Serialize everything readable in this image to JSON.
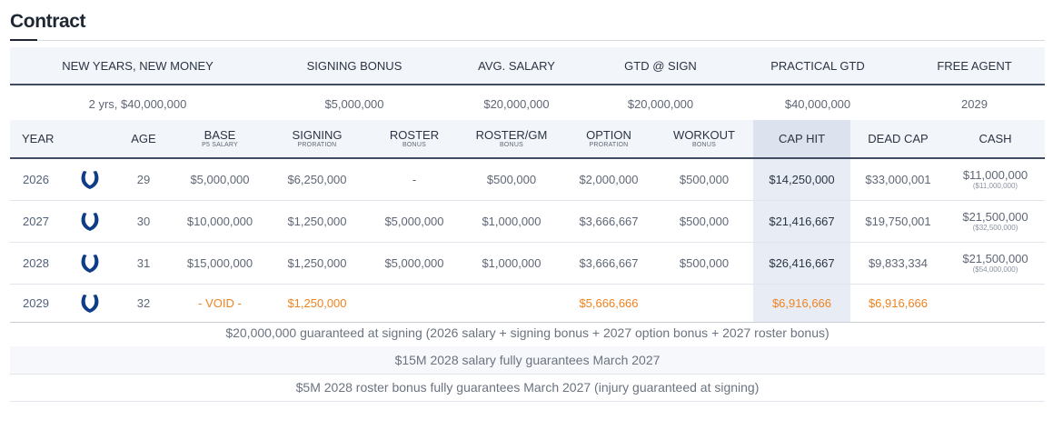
{
  "section_title": "Contract",
  "summary": {
    "headers": [
      "NEW YEARS, NEW MONEY",
      "SIGNING BONUS",
      "AVG. SALARY",
      "GTD @ SIGN",
      "PRACTICAL GTD",
      "FREE AGENT"
    ],
    "values": [
      "2 yrs, $40,000,000",
      "$5,000,000",
      "$20,000,000",
      "$20,000,000",
      "$40,000,000",
      "2029"
    ]
  },
  "table": {
    "headers": [
      {
        "label": "YEAR",
        "sub": ""
      },
      {
        "label": "",
        "sub": ""
      },
      {
        "label": "AGE",
        "sub": ""
      },
      {
        "label": "BASE",
        "sub": "P5 SALARY"
      },
      {
        "label": "SIGNING",
        "sub": "PRORATION"
      },
      {
        "label": "ROSTER",
        "sub": "BONUS"
      },
      {
        "label": "ROSTER/GM",
        "sub": "BONUS"
      },
      {
        "label": "OPTION",
        "sub": "PRORATION"
      },
      {
        "label": "WORKOUT",
        "sub": "BONUS"
      },
      {
        "label": "CAP HIT",
        "sub": ""
      },
      {
        "label": "DEAD CAP",
        "sub": ""
      },
      {
        "label": "CASH",
        "sub": ""
      }
    ],
    "rows": [
      {
        "year": "2026",
        "logo": "colts-horseshoe-icon",
        "age": "29",
        "base": "$5,000,000",
        "signing": "$6,250,000",
        "roster": "-",
        "roster_gm": "$500,000",
        "option": "$2,000,000",
        "workout": "$500,000",
        "cap_hit": "$14,250,000",
        "dead_cap": "$33,000,001",
        "cash": "$11,000,000",
        "cash_cum": "($11,000,000)"
      },
      {
        "year": "2027",
        "logo": "colts-horseshoe-icon",
        "age": "30",
        "base": "$10,000,000",
        "signing": "$1,250,000",
        "roster": "$5,000,000",
        "roster_gm": "$1,000,000",
        "option": "$3,666,667",
        "workout": "$500,000",
        "cap_hit": "$21,416,667",
        "dead_cap": "$19,750,001",
        "cash": "$21,500,000",
        "cash_cum": "($32,500,000)"
      },
      {
        "year": "2028",
        "logo": "colts-horseshoe-icon",
        "age": "31",
        "base": "$15,000,000",
        "signing": "$1,250,000",
        "roster": "$5,000,000",
        "roster_gm": "$1,000,000",
        "option": "$3,666,667",
        "workout": "$500,000",
        "cap_hit": "$26,416,667",
        "dead_cap": "$9,833,334",
        "cash": "$21,500,000",
        "cash_cum": "($54,000,000)"
      },
      {
        "year": "2029",
        "logo": "colts-horseshoe-icon",
        "age": "32",
        "base": "- VOID -",
        "signing": "$1,250,000",
        "roster": "",
        "roster_gm": "",
        "option": "$5,666,666",
        "workout": "",
        "cap_hit": "$6,916,666",
        "dead_cap": "$6,916,666",
        "cash": "",
        "cash_cum": ""
      }
    ]
  },
  "notes": [
    "$20,000,000 guaranteed at signing (2026 salary + signing bonus + 2027 option bonus + 2027 roster bonus)",
    "$15M 2028 salary fully guarantees March 2027",
    "$5M 2028 roster bonus fully guarantees March 2027 (injury guaranteed at signing)"
  ],
  "colors": {
    "accent_dark": "#414d62",
    "void_orange": "#f0821e",
    "colts_blue": "#0f3c86",
    "cap_highlight": "#e8edf5"
  }
}
